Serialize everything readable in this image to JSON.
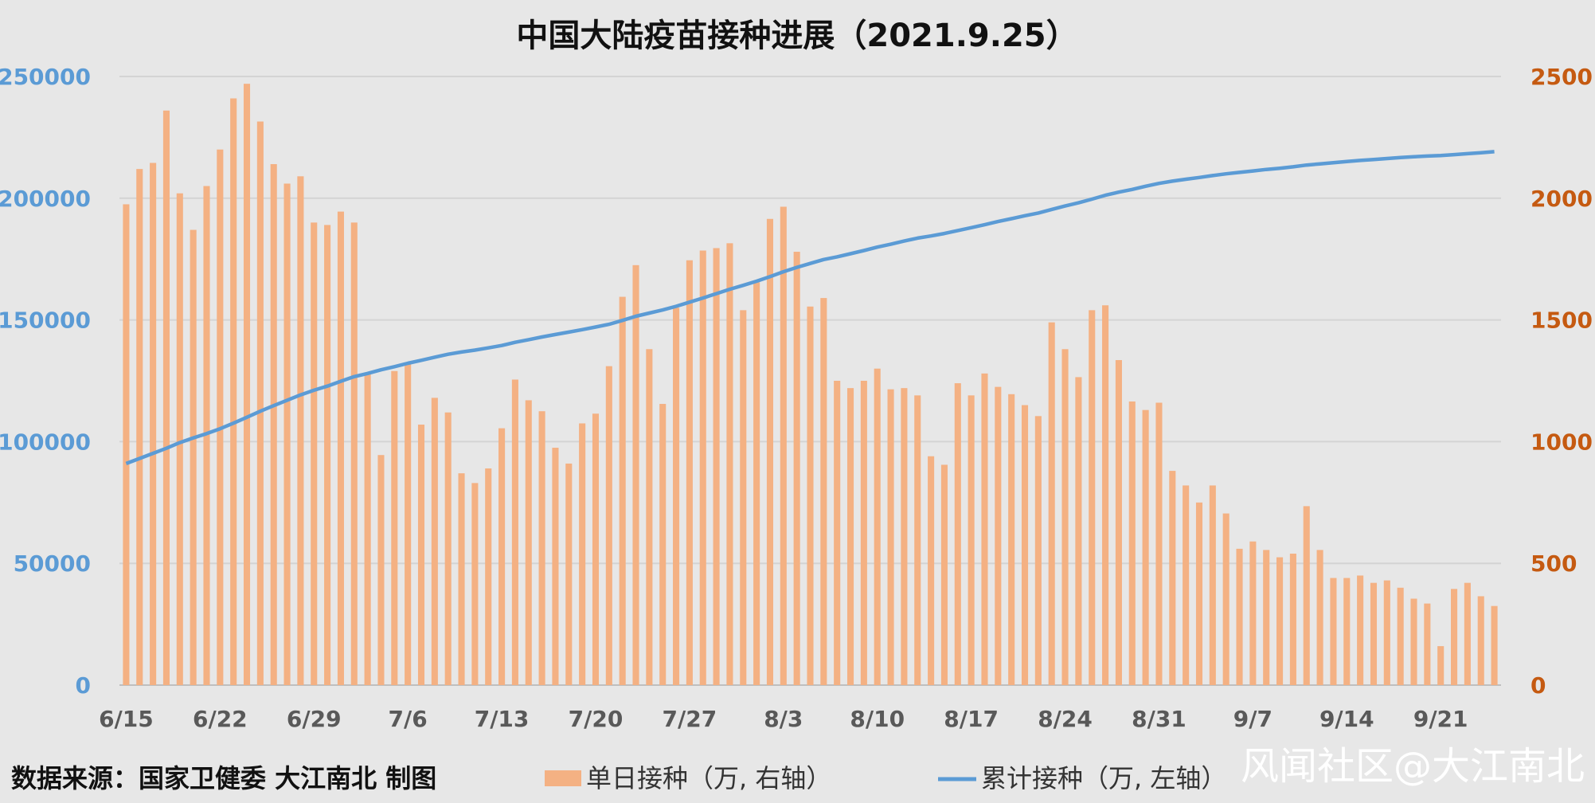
{
  "chart_data": {
    "type": "bar+line",
    "title": "中国大陆疫苗接种进展（2021.9.25）",
    "x_tick_labels": [
      "6/15",
      "6/22",
      "6/29",
      "7/6",
      "7/13",
      "7/20",
      "7/27",
      "8/3",
      "8/10",
      "8/17",
      "8/24",
      "8/31",
      "9/7",
      "9/14",
      "9/21"
    ],
    "left_axis": {
      "ylim": [
        0,
        250000
      ],
      "ticks": [
        "0",
        "50000",
        "100000",
        "150000",
        "200000",
        "250000"
      ],
      "color": "#5b9bd5"
    },
    "right_axis": {
      "ylim": [
        0,
        2500
      ],
      "ticks": [
        "0",
        "500",
        "1000",
        "1500",
        "2000",
        "2500"
      ],
      "color": "#c55a11"
    },
    "grid": true,
    "series": [
      {
        "name": "单日接种（万, 右轴）",
        "kind": "bar",
        "axis": "right",
        "color": "#f4b183",
        "values": [
          1975,
          2120,
          2145,
          2360,
          2020,
          1870,
          2050,
          2200,
          2410,
          2470,
          2315,
          2140,
          2060,
          2090,
          1900,
          1890,
          1945,
          1900,
          1280,
          945,
          1290,
          1325,
          1070,
          1180,
          1120,
          870,
          830,
          890,
          1055,
          1255,
          1170,
          1125,
          975,
          910,
          1075,
          1115,
          1310,
          1595,
          1725,
          1380,
          1155,
          1550,
          1745,
          1785,
          1795,
          1815,
          1540,
          1655,
          1915,
          1965,
          1780,
          1555,
          1590,
          1250,
          1220,
          1250,
          1300,
          1215,
          1220,
          1190,
          940,
          905,
          1240,
          1190,
          1280,
          1225,
          1195,
          1150,
          1105,
          1490,
          1380,
          1265,
          1540,
          1560,
          1335,
          1165,
          1130,
          1160,
          880,
          820,
          750,
          820,
          705,
          560,
          590,
          555,
          525,
          540,
          735,
          555,
          440,
          440,
          450,
          420,
          430,
          400,
          355,
          335,
          160,
          395,
          420,
          365,
          325
        ]
      },
      {
        "name": "累计接种（万, 左轴）",
        "kind": "line",
        "axis": "left",
        "color": "#5b9bd5",
        "values": [
          91000,
          93100,
          95200,
          97300,
          99600,
          101500,
          103300,
          105300,
          107600,
          110000,
          112500,
          114800,
          117000,
          119200,
          121100,
          122800,
          124800,
          126700,
          128000,
          129500,
          130800,
          132200,
          133400,
          134700,
          135900,
          136800,
          137600,
          138500,
          139500,
          140800,
          141900,
          143000,
          144000,
          145000,
          146000,
          147100,
          148200,
          149800,
          151500,
          152800,
          154100,
          155600,
          157300,
          159000,
          160800,
          162600,
          164200,
          165900,
          167800,
          169800,
          171600,
          173200,
          174800,
          175900,
          177200,
          178500,
          179900,
          181100,
          182400,
          183600,
          184500,
          185500,
          186700,
          187900,
          189100,
          190400,
          191600,
          192800,
          193900,
          195400,
          196800,
          198100,
          199600,
          201200,
          202500,
          203600,
          204900,
          206100,
          207000,
          207800,
          208500,
          209300,
          210000,
          210600,
          211200,
          211800,
          212300,
          212900,
          213600,
          214100,
          214600,
          215100,
          215500,
          215900,
          216300,
          216700,
          217000,
          217300,
          217500,
          217900,
          218300,
          218700,
          219100
        ]
      }
    ]
  },
  "footer": {
    "source": "数据来源：国家卫健委    大江南北 制图"
  },
  "legend": [
    {
      "label": "单日接种（万, 右轴）",
      "color": "#f4b183"
    },
    {
      "label": "累计接种（万, 左轴）",
      "color": "#5b9bd5"
    }
  ],
  "watermark": "风闻社区@大江南北"
}
